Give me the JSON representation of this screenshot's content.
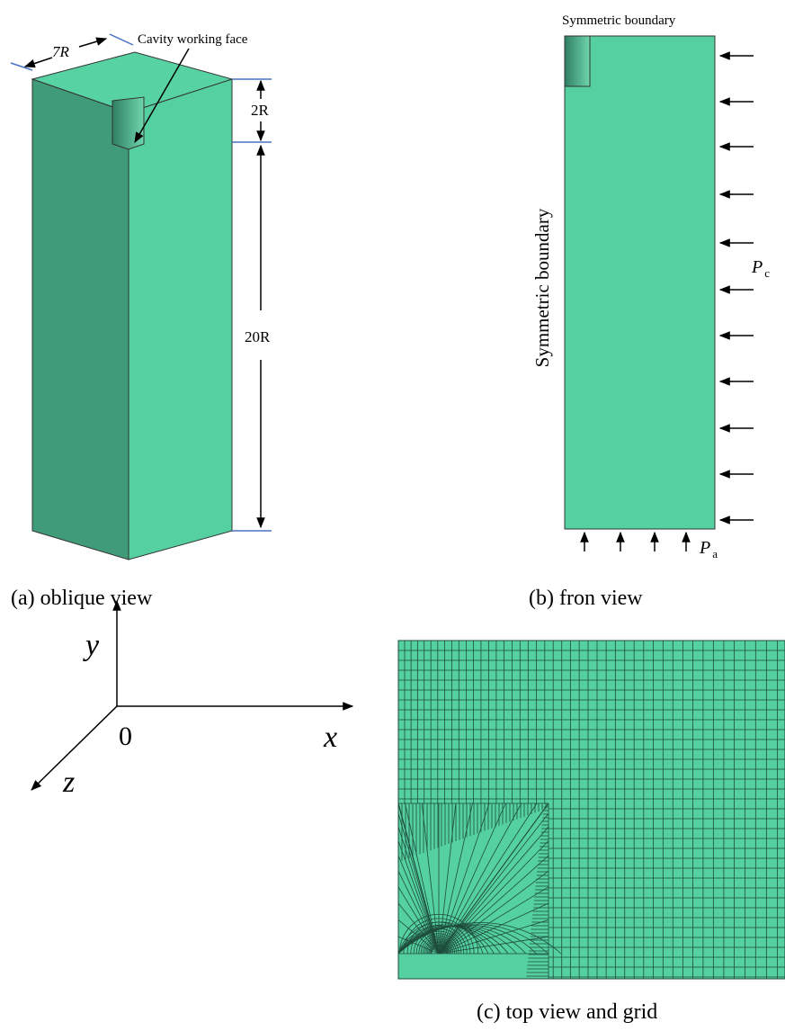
{
  "oblique_view": {
    "width_label": "7R",
    "cavity_label": "Cavity working face",
    "depth_label": "2R",
    "height_label": "20R",
    "caption": "(a) oblique view"
  },
  "front_view": {
    "top_label": "Symmetric boundary",
    "side_label": "Symmetric boundary",
    "side_pressure": {
      "symbol": "P",
      "subscript": "c"
    },
    "bottom_pressure": {
      "symbol": "P",
      "subscript": "a"
    },
    "caption": "(b) fron view"
  },
  "axes": {
    "y": "y",
    "x": "x",
    "z": "z",
    "origin": "0"
  },
  "top_view": {
    "caption": "(c) top view and grid"
  }
}
